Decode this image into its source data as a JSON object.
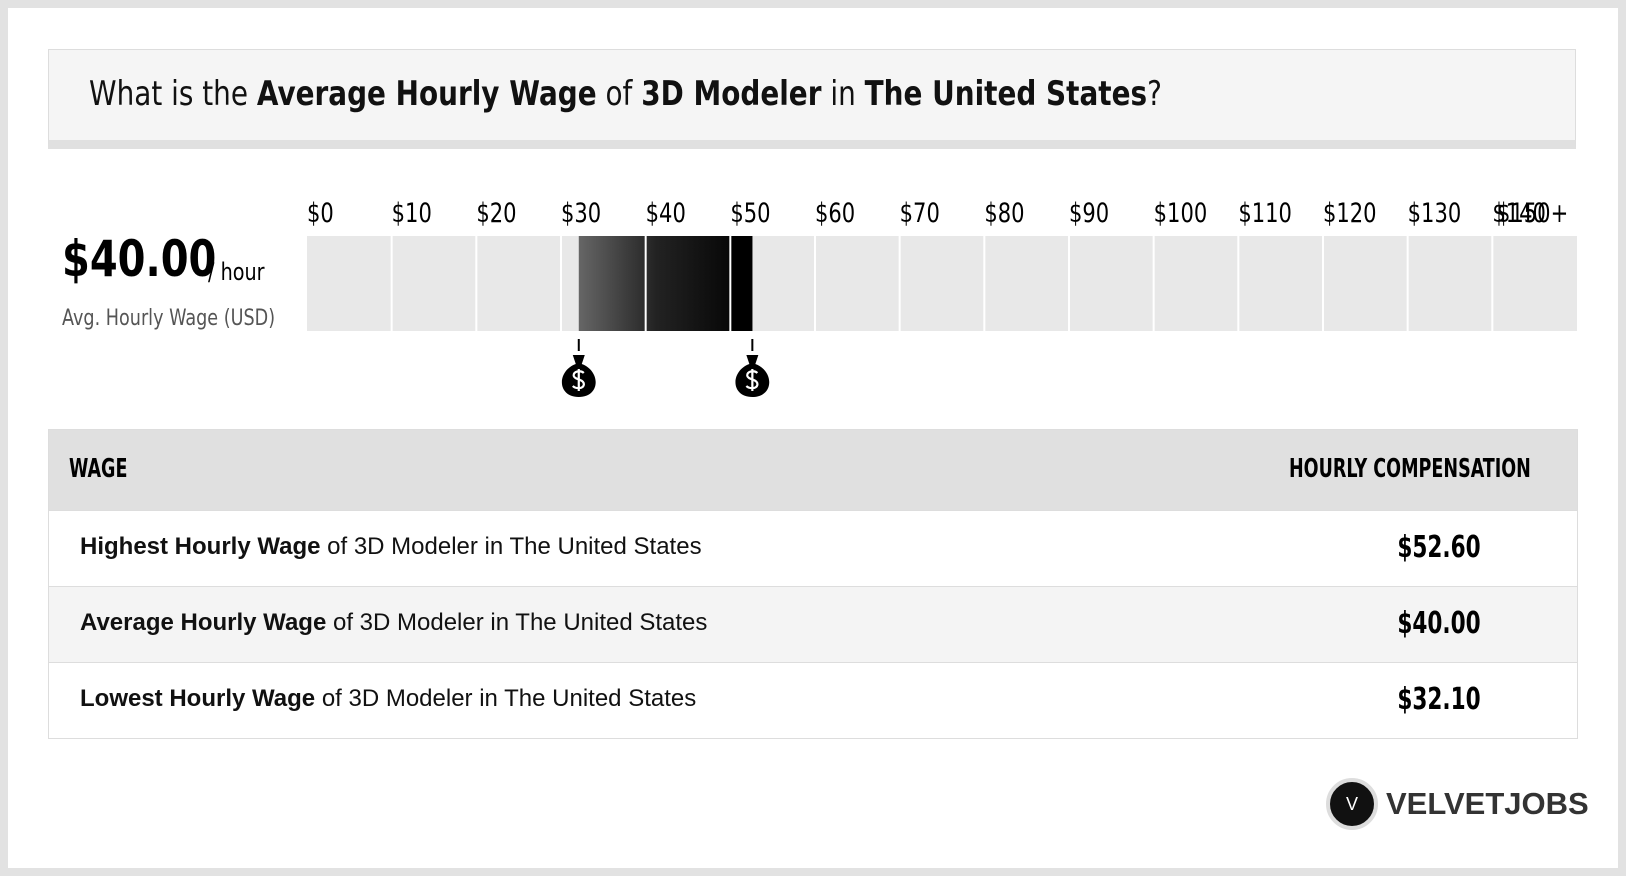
{
  "header": {
    "title_parts": [
      "What is the",
      "Average Hourly Wage",
      "of",
      "3D Modeler",
      "in",
      "The United States",
      "?"
    ]
  },
  "summary": {
    "value": "$40.00",
    "unit": "/ hour",
    "label": "Avg. Hourly Wage (USD)"
  },
  "chart_data": {
    "type": "range",
    "xlim": [
      0,
      150
    ],
    "xticks": [
      {
        "value": 0,
        "label": "$0"
      },
      {
        "value": 10,
        "label": "$10"
      },
      {
        "value": 20,
        "label": "$20"
      },
      {
        "value": 30,
        "label": "$30"
      },
      {
        "value": 40,
        "label": "$40"
      },
      {
        "value": 50,
        "label": "$50"
      },
      {
        "value": 60,
        "label": "$60"
      },
      {
        "value": 70,
        "label": "$70"
      },
      {
        "value": 80,
        "label": "$80"
      },
      {
        "value": 90,
        "label": "$90"
      },
      {
        "value": 100,
        "label": "$100"
      },
      {
        "value": 110,
        "label": "$110"
      },
      {
        "value": 120,
        "label": "$120"
      },
      {
        "value": 130,
        "label": "$130"
      },
      {
        "value": 140,
        "label": "$140"
      },
      {
        "value": 150,
        "label": "$150+"
      }
    ],
    "low": 32.1,
    "high": 52.6,
    "color": "#000000"
  },
  "table": {
    "header": [
      "WAGE",
      "HOURLY COMPENSATION"
    ],
    "rows": [
      [
        "Highest Hourly Wage",
        "of 3D Modeler in The United States",
        "$52.60"
      ],
      [
        "Average Hourly Wage",
        "of 3D Modeler in The United States",
        "$40.00"
      ],
      [
        "Lowest Hourly Wage",
        "of 3D Modeler in The United States",
        "$32.10"
      ]
    ]
  },
  "logo": {
    "mark": "V",
    "text": "VELVETJOBS"
  }
}
